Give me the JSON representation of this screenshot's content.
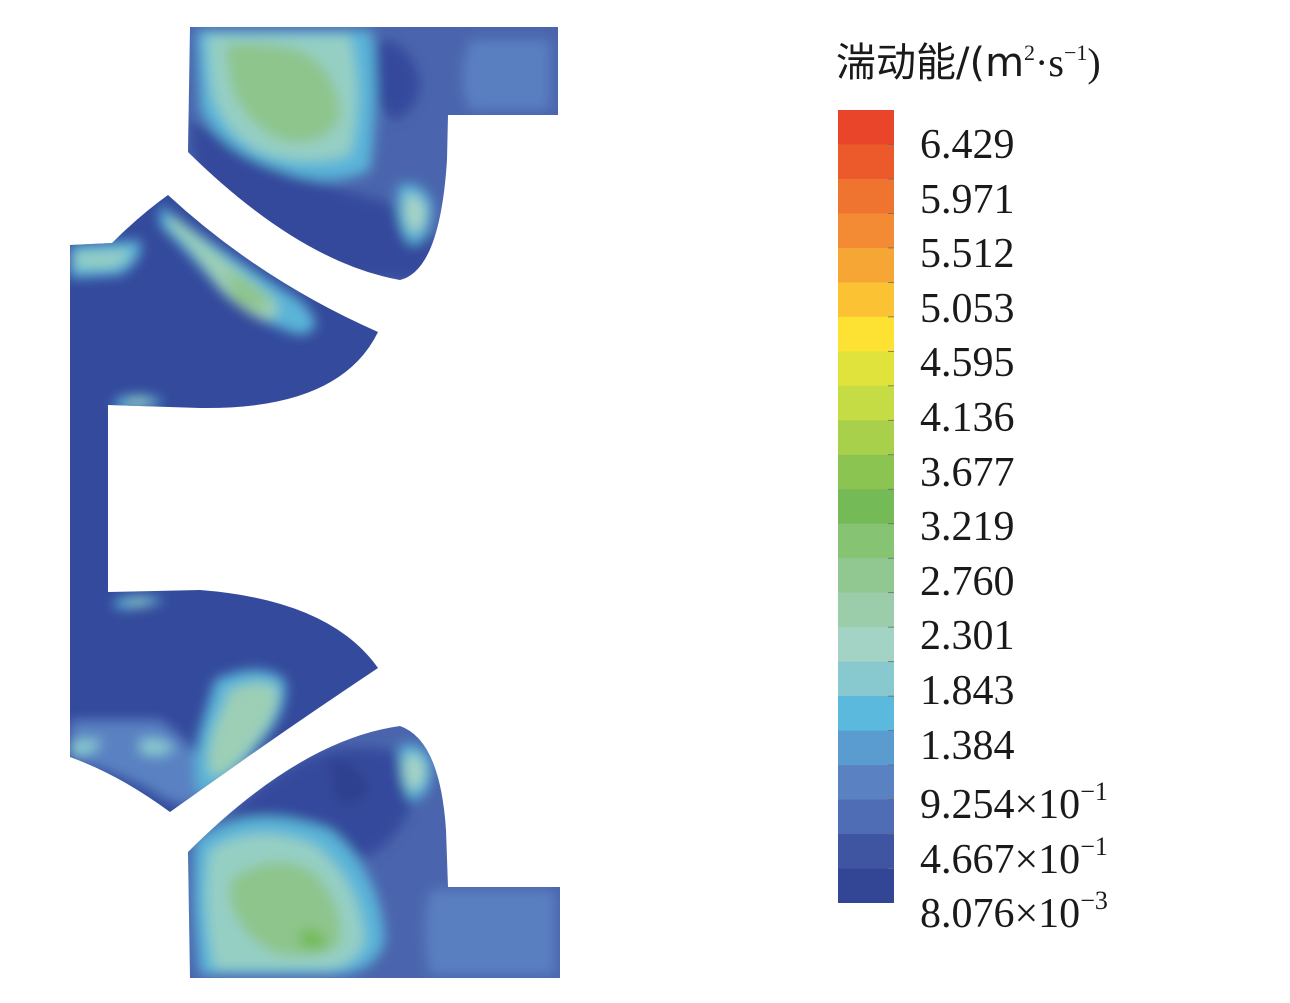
{
  "legend": {
    "title_main": "湍动能/(m",
    "title_exp1": "2",
    "title_mid": "·s",
    "title_exp2": "−1",
    "title_end": ")",
    "ticks": [
      {
        "mantissa": "6.429",
        "exp": ""
      },
      {
        "mantissa": "5.971",
        "exp": ""
      },
      {
        "mantissa": "5.512",
        "exp": ""
      },
      {
        "mantissa": "5.053",
        "exp": ""
      },
      {
        "mantissa": "4.595",
        "exp": ""
      },
      {
        "mantissa": "4.136",
        "exp": ""
      },
      {
        "mantissa": "3.677",
        "exp": ""
      },
      {
        "mantissa": "3.219",
        "exp": ""
      },
      {
        "mantissa": "2.760",
        "exp": ""
      },
      {
        "mantissa": "2.301",
        "exp": ""
      },
      {
        "mantissa": "1.843",
        "exp": ""
      },
      {
        "mantissa": "1.384",
        "exp": ""
      },
      {
        "mantissa": "9.254×10",
        "exp": "−1"
      },
      {
        "mantissa": "4.667×10",
        "exp": "−1"
      },
      {
        "mantissa": "8.076×10",
        "exp": "−3"
      }
    ],
    "colors": [
      "#e8452a",
      "#ec5a2c",
      "#ef742f",
      "#f28b33",
      "#f6a634",
      "#fbc334",
      "#fde233",
      "#e0e33c",
      "#c5dc44",
      "#a8d04b",
      "#8cc452",
      "#74bb58",
      "#86c474",
      "#91c892",
      "#9ccdab",
      "#a3d3c4",
      "#88c9d0",
      "#5ab9dc",
      "#5a9bd0",
      "#5a82c2",
      "#4f6db4",
      "#3f55a2",
      "#334595"
    ],
    "value_max": 6.429,
    "value_min": 0.008076
  }
}
